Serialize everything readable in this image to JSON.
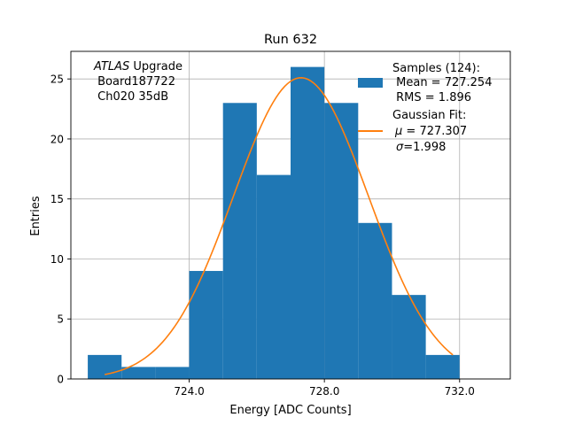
{
  "chart_data": {
    "type": "bar",
    "title": "Run 632",
    "xlabel": "Energy [ADC Counts]",
    "ylabel": "Entries",
    "xlim": [
      720.5,
      733.5
    ],
    "ylim": [
      0,
      27.3
    ],
    "grid": true,
    "x_ticks": [
      724.0,
      728.0,
      732.0
    ],
    "x_tick_labels": [
      "724.0",
      "728.0",
      "732.0"
    ],
    "y_ticks": [
      0,
      5,
      10,
      15,
      20,
      25
    ],
    "y_tick_labels": [
      "0",
      "5",
      "10",
      "15",
      "20",
      "25"
    ],
    "bin_edges": [
      721.0,
      722.0,
      723.0,
      724.0,
      725.0,
      726.0,
      727.0,
      728.0,
      729.0,
      730.0,
      731.0,
      732.0
    ],
    "values": [
      2,
      1,
      1,
      9,
      23,
      17,
      26,
      23,
      13,
      7,
      2
    ],
    "bar_color": "#1f77b4",
    "fit": {
      "color": "#ff7f0e",
      "mu": 727.307,
      "sigma": 1.998,
      "peak": 25.1,
      "x_range": [
        721.5,
        731.8
      ]
    },
    "annotation": {
      "line1_italic": "ATLAS",
      "line1_rest": " Upgrade",
      "line2": " Board187722",
      "line3": " Ch020 35dB"
    },
    "legend": {
      "placement": "top-right",
      "samples_line1": "Samples (124):",
      "samples_line2": " Mean = 727.254",
      "samples_line3": " RMS = 1.896",
      "fit_line1": "Gaussian Fit:",
      "fit_line2_sym": "μ",
      "fit_line2_rest": " = 727.307",
      "fit_line3_sym": "σ",
      "fit_line3_rest": "=1.998"
    }
  }
}
